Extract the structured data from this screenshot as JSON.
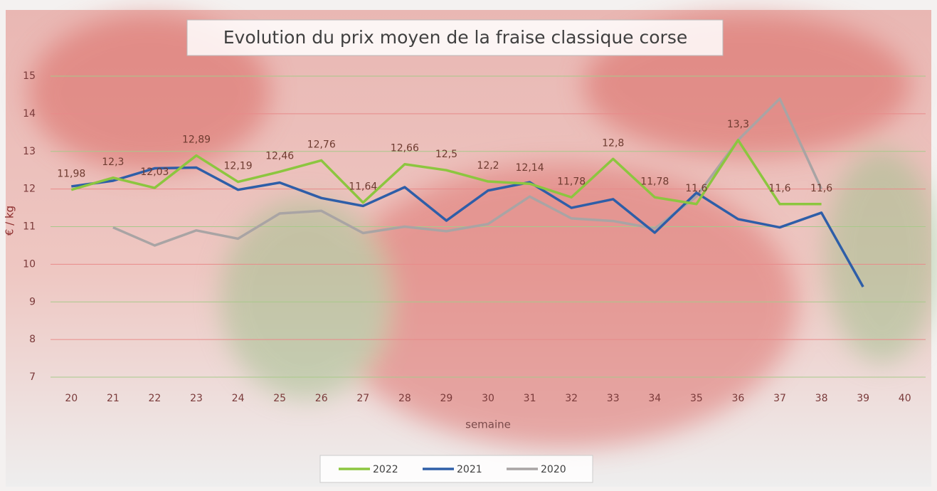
{
  "chart_data": {
    "type": "line",
    "title": "Evolution du prix moyen de la fraise classique corse",
    "x_label": "semaine",
    "y_label": "€ / kg",
    "categories": [
      "20",
      "21",
      "22",
      "23",
      "24",
      "25",
      "26",
      "27",
      "28",
      "29",
      "30",
      "31",
      "32",
      "33",
      "34",
      "35",
      "36",
      "37",
      "38",
      "39",
      "40"
    ],
    "ylim": [
      7,
      15
    ],
    "yticks": [
      7,
      8,
      9,
      10,
      11,
      12,
      13,
      14,
      15
    ],
    "grid": true,
    "legend": "bottom",
    "series": [
      {
        "name": "2022",
        "color": "#8cc63f",
        "values": [
          11.98,
          12.3,
          12.03,
          12.89,
          12.19,
          12.46,
          12.76,
          11.64,
          12.66,
          12.5,
          12.2,
          12.14,
          11.78,
          12.8,
          11.78,
          11.6,
          13.3,
          11.6,
          11.6,
          null,
          null
        ],
        "value_labels": [
          "11,98",
          "12,3",
          "12,03",
          "12,89",
          "12,19",
          "12,46",
          "12,76",
          "11,64",
          "12,66",
          "12,5",
          "12,2",
          "12,14",
          "11,78",
          "12,8",
          "11,78",
          "11,6",
          "13,3",
          "11,6",
          "11,6",
          null,
          null
        ]
      },
      {
        "name": "2021",
        "color": "#2e5ea8",
        "values": [
          12.07,
          12.22,
          12.55,
          12.57,
          11.98,
          12.17,
          11.76,
          11.55,
          12.05,
          11.16,
          11.96,
          12.18,
          11.5,
          11.73,
          10.84,
          11.9,
          11.2,
          10.98,
          11.37,
          9.4,
          null
        ]
      },
      {
        "name": "2020",
        "color": "#a9a4a4",
        "values": [
          null,
          10.98,
          10.5,
          10.9,
          10.68,
          11.35,
          11.42,
          10.83,
          11.0,
          10.88,
          11.07,
          11.8,
          11.22,
          11.15,
          10.95,
          11.8,
          13.3,
          14.4,
          12.0,
          null,
          null
        ]
      }
    ]
  }
}
